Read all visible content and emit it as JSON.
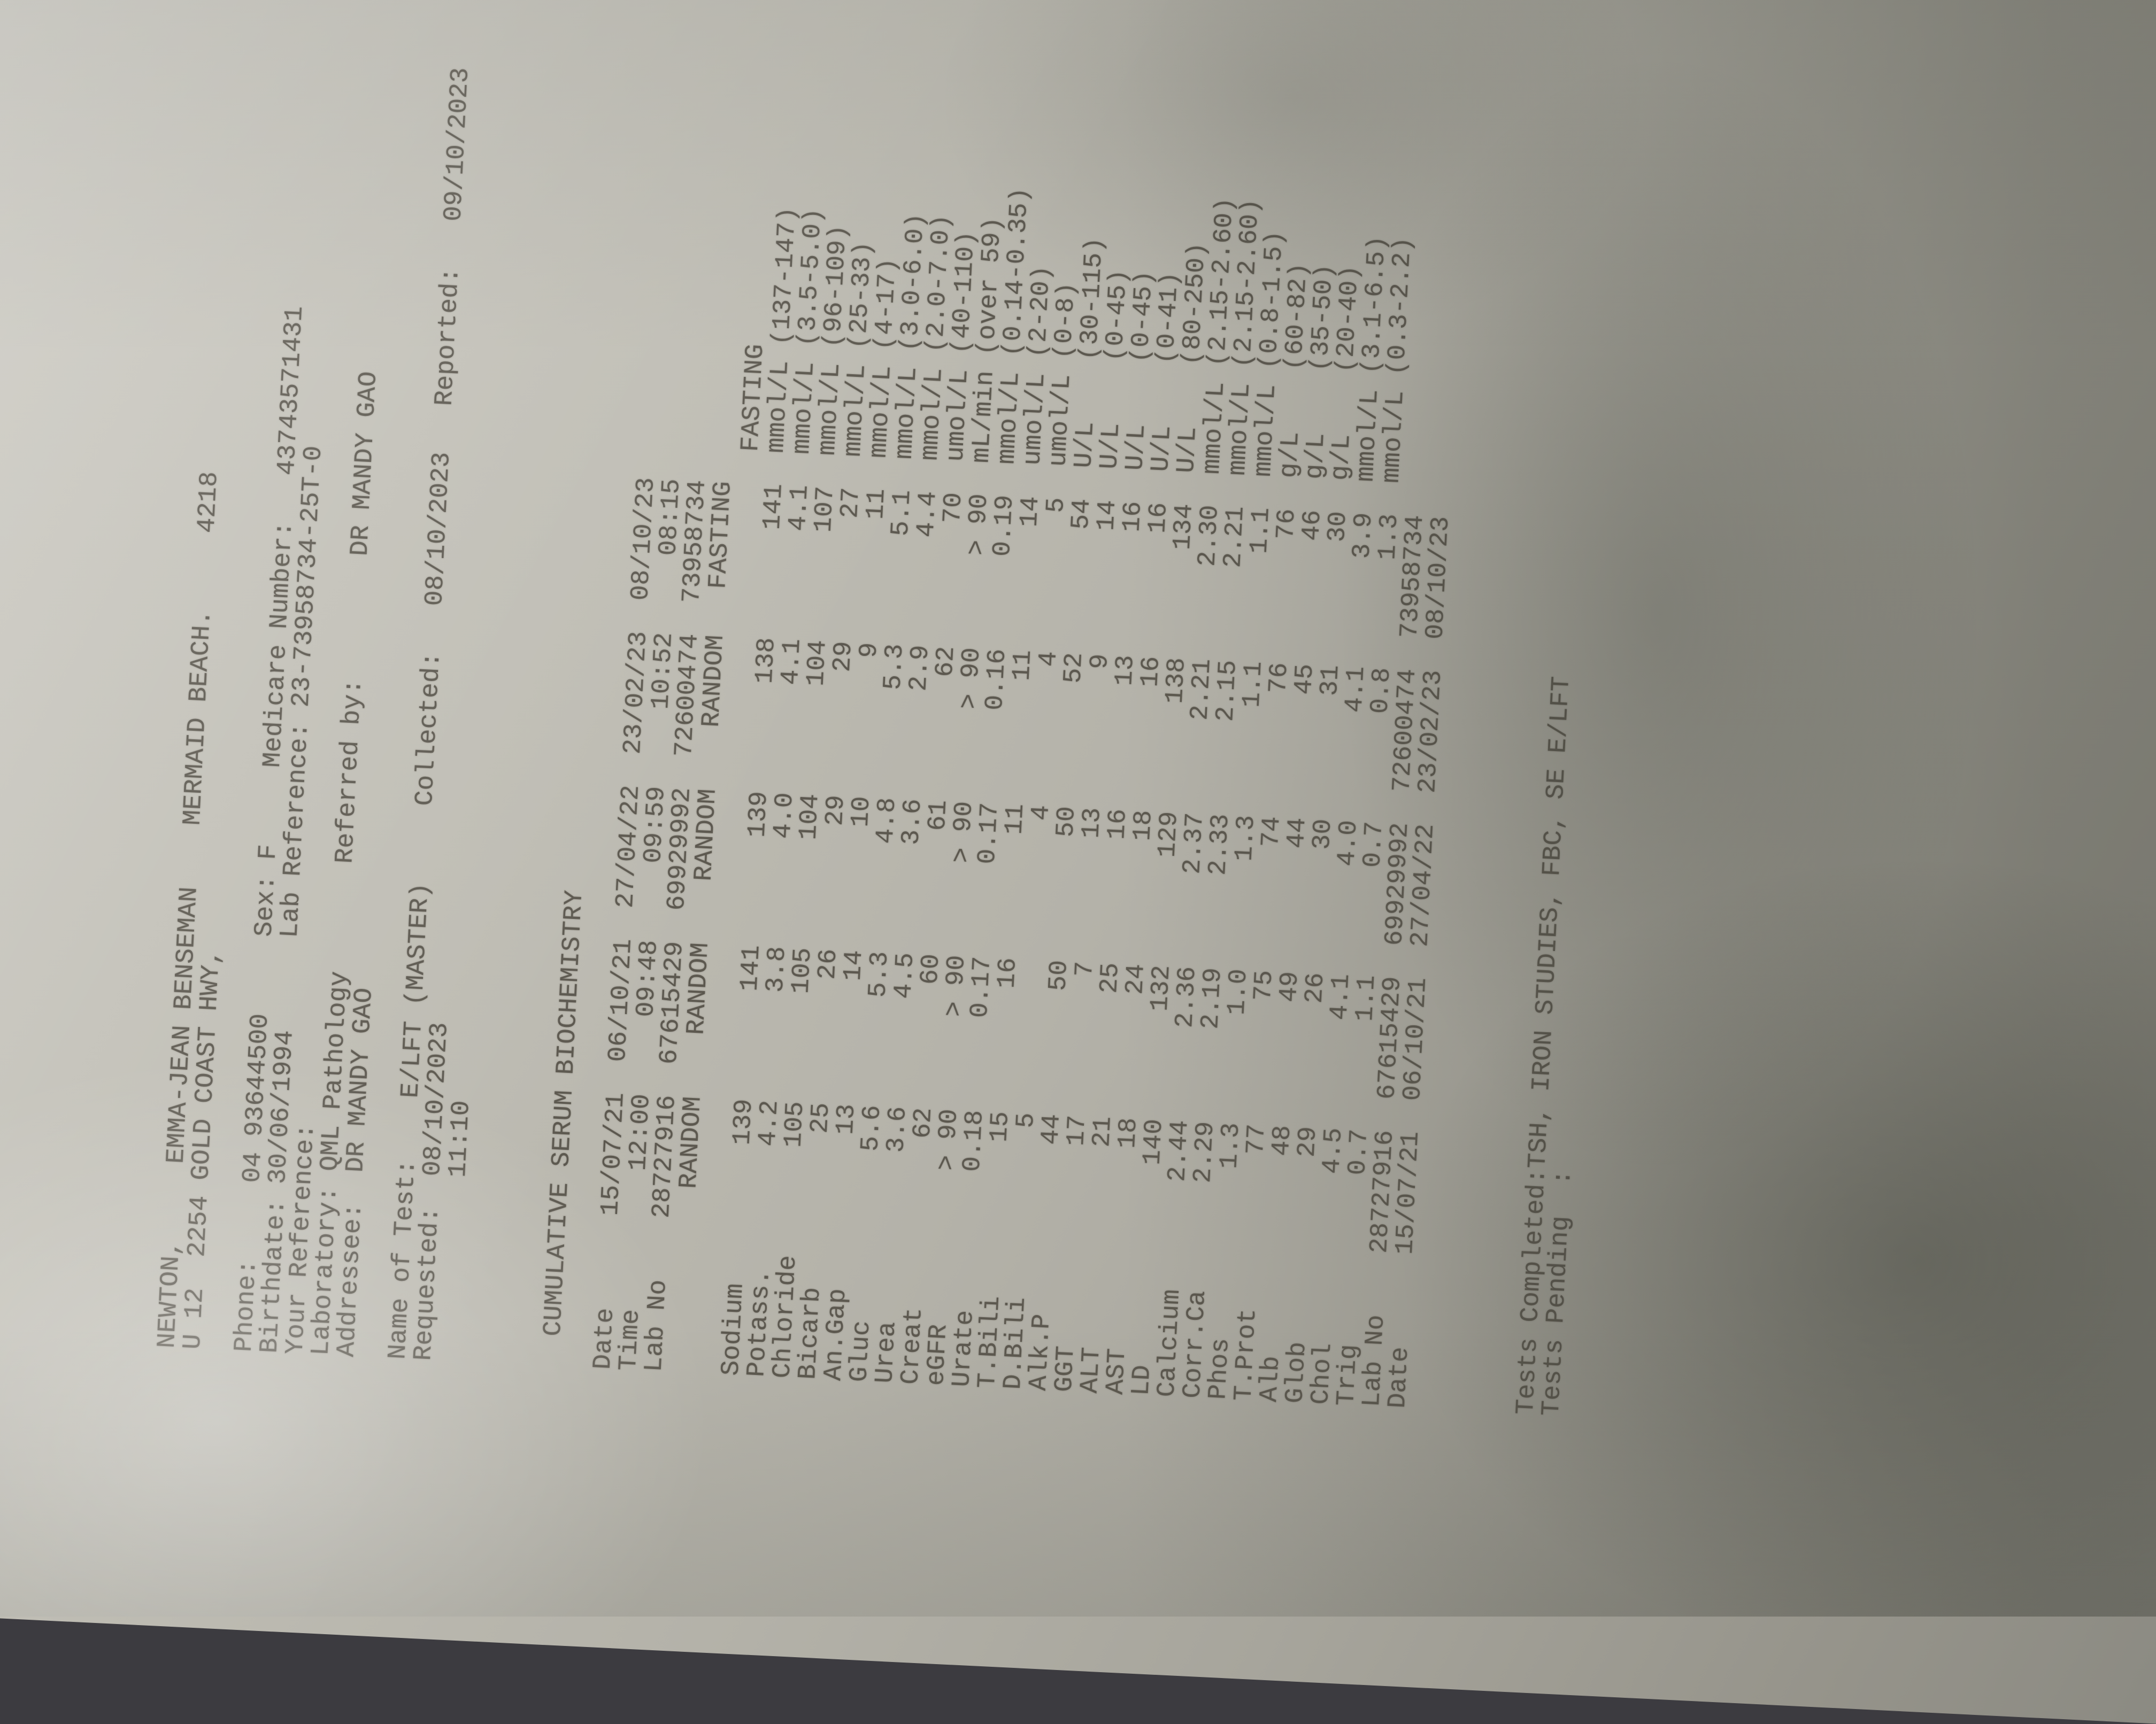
{
  "colors": {
    "paper_light": "#c6c4bc",
    "paper_shadow": "#8b8d85",
    "ink": "#5c584f",
    "backdrop": "#3c3b40"
  },
  "document": {
    "patient": {
      "surname": "NEWTON,",
      "given_names": "EMMA-JEAN BENSEMAN",
      "suburb": "MERMAID BEACH.",
      "postcode": "4218",
      "address": "U 12  2254 GOLD COAST HWY,",
      "phone_label": "Phone:",
      "phone": "04 93644500",
      "sex_label": "Sex:",
      "sex": "F",
      "medicare_label": "Medicare Number:",
      "medicare_number": "43743571431",
      "birthdate_label": "Birthdate:",
      "birthdate": "30/06/1994",
      "lab_reference_label": "Lab Reference:",
      "lab_reference": "23-73958734-25T-0",
      "your_reference_label": "Your Reference:",
      "laboratory_label": "Laboratory:",
      "laboratory": "QML Pathology",
      "referred_by_label": "Referred by:",
      "referred_by": "DR MANDY GAO",
      "addressee_label": "Addressee:",
      "addressee": "DR MANDY GAO"
    },
    "test_info": {
      "name_of_test_label": "Name of Test:",
      "name_of_test": "E/LFT (MASTER)",
      "collected_label": "Collected:",
      "collected": "08/10/2023",
      "reported_label": "Reported:",
      "reported": "09/10/2023",
      "requested_label": "Requested:",
      "requested": "08/10/2023",
      "requested_time": "11:10"
    },
    "section_title": "CUMULATIVE SERUM BIOCHEMISTRY",
    "table": {
      "date_label": "Date",
      "time_label": "Time",
      "lab_no_label": "Lab No",
      "dates": [
        "15/07/21",
        "06/10/21",
        "27/04/22",
        "23/02/23",
        "08/10/23"
      ],
      "times": [
        "12:00",
        "09:48",
        "09:59",
        "10:52",
        "08:15"
      ],
      "lab_nos": [
        "28727916",
        "67615429",
        "69929992",
        "72600474",
        "73958734"
      ],
      "specimen_types": [
        "RANDOM",
        "RANDOM",
        "RANDOM",
        "RANDOM",
        "FASTING"
      ],
      "fasting_flag": "FASTING",
      "rows": [
        {
          "name": "Sodium",
          "values": [
            "139",
            "141",
            "139",
            "138",
            "141"
          ],
          "unit": "mmol/L",
          "range": "(137-147)"
        },
        {
          "name": "Potass.",
          "values": [
            "4.2",
            "3.8",
            "4.0",
            "4.1",
            "4.1"
          ],
          "unit": "mmol/L",
          "range": "(3.5-5.0)"
        },
        {
          "name": "Chloride",
          "values": [
            "105",
            "105",
            "104",
            "104",
            "107"
          ],
          "unit": "mmol/L",
          "range": "(96-109)"
        },
        {
          "name": "Bicarb",
          "values": [
            "25",
            "26",
            "29",
            "29",
            "27"
          ],
          "unit": "mmol/L",
          "range": "(25-33)"
        },
        {
          "name": "An.Gap",
          "values": [
            "13",
            "14",
            "10",
            "9",
            "11"
          ],
          "unit": "mmol/L",
          "range": "(4-17)"
        },
        {
          "name": "Gluc",
          "values": [
            "5.6",
            "5.3",
            "4.8",
            "5.3",
            "5.1"
          ],
          "unit": "mmol/L",
          "range": "(3.0-6.0)"
        },
        {
          "name": "Urea",
          "values": [
            "3.6",
            "4.5",
            "3.6",
            "2.9",
            "4.4"
          ],
          "unit": "mmol/L",
          "range": "(2.0-7.0)"
        },
        {
          "name": "Creat",
          "values": [
            "62",
            "60",
            "61",
            "62",
            "70"
          ],
          "unit": "umol/L",
          "range": "(40-110)"
        },
        {
          "name": "eGFR",
          "values": [
            "> 90",
            "> 90",
            "> 90",
            "> 90",
            "> 90"
          ],
          "unit": "mL/min",
          "range": "(over 59)"
        },
        {
          "name": "Urate",
          "values": [
            "0.18",
            "0.17",
            "0.17",
            "0.16",
            "0.19"
          ],
          "unit": "mmol/L",
          "range": "(0.14-0.35)"
        },
        {
          "name": "T.Bili",
          "values": [
            "15",
            "16",
            "11",
            "11",
            "14"
          ],
          "unit": "umol/L",
          "range": "(2-20)"
        },
        {
          "name": "D.Bili",
          "values": [
            "5",
            "",
            "4",
            "4",
            "5"
          ],
          "unit": "umol/L",
          "range": "(0-8)"
        },
        {
          "name": "Alk.P",
          "values": [
            "44",
            "50",
            "50",
            "52",
            "54"
          ],
          "unit": "U/L",
          "range": "(30-115)"
        },
        {
          "name": "GGT",
          "values": [
            "17",
            "7",
            "13",
            "9",
            "14"
          ],
          "unit": "U/L",
          "range": "(0-45)"
        },
        {
          "name": "ALT",
          "values": [
            "21",
            "25",
            "16",
            "13",
            "16"
          ],
          "unit": "U/L",
          "range": "(0-45)"
        },
        {
          "name": "AST",
          "values": [
            "18",
            "24",
            "18",
            "16",
            "16"
          ],
          "unit": "U/L",
          "range": "(0-41)"
        },
        {
          "name": "LD",
          "values": [
            "140",
            "132",
            "129",
            "138",
            "134"
          ],
          "unit": "U/L",
          "range": "(80-250)"
        },
        {
          "name": "Calcium",
          "values": [
            "2.44",
            "2.36",
            "2.37",
            "2.21",
            "2.30"
          ],
          "unit": "mmol/L",
          "range": "(2.15-2.60)"
        },
        {
          "name": "Corr.Ca",
          "values": [
            "2.29",
            "2.19",
            "2.33",
            "2.15",
            "2.21"
          ],
          "unit": "mmol/L",
          "range": "(2.15-2.60)"
        },
        {
          "name": "Phos",
          "values": [
            "1.3",
            "1.0",
            "1.3",
            "1.1",
            "1.1"
          ],
          "unit": "mmol/L",
          "range": "(0.8-1.5)"
        },
        {
          "name": "T.Prot",
          "values": [
            "77",
            "75",
            "74",
            "76",
            "76"
          ],
          "unit": "g/L",
          "range": "(60-82)"
        },
        {
          "name": "Alb",
          "values": [
            "48",
            "49",
            "44",
            "45",
            "46"
          ],
          "unit": "g/L",
          "range": "(35-50)"
        },
        {
          "name": "Glob",
          "values": [
            "29",
            "26",
            "30",
            "31",
            "30"
          ],
          "unit": "g/L",
          "range": "(20-40)"
        },
        {
          "name": "Chol",
          "values": [
            "4.5",
            "4.1",
            "4.0",
            "4.1",
            "3.9"
          ],
          "unit": "mmol/L",
          "range": "(3.1-6.5)"
        },
        {
          "name": "Trig",
          "values": [
            "0.7",
            "1.1",
            "0.7",
            "0.8",
            "1.3"
          ],
          "unit": "mmol/L",
          "range": "(0.3-2.2)"
        }
      ]
    },
    "footer": {
      "tests_completed_label": "Tests Completed:",
      "tests_completed": "TSH, IRON STUDIES, FBC, SE E/LFT",
      "tests_pending_label": "Tests Pending",
      "tests_pending_colon": ":"
    }
  }
}
